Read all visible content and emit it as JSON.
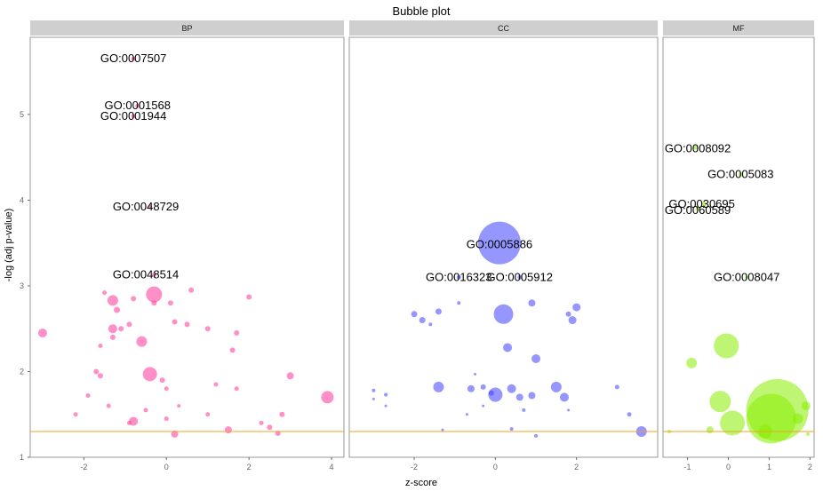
{
  "chart_data": {
    "type": "scatter",
    "title": "Bubble plot",
    "xlabel": "z-score",
    "ylabel": "-log (adj p-value)",
    "ylim": [
      1,
      5.9
    ],
    "y_ticks": [
      1,
      2,
      3,
      4,
      5
    ],
    "threshold_y": 1.3,
    "grid": false,
    "legend": "none",
    "colors": {
      "BP": "#ff3399",
      "CC": "#4040ff",
      "MF": "#88ee00",
      "threshold": "#f0a020"
    },
    "panels": [
      {
        "name": "BP",
        "xlim": [
          -3.3,
          4.3
        ],
        "x_ticks": [
          -2,
          0,
          2,
          4
        ],
        "labels": [
          {
            "text": "GO:0007507",
            "x": -0.8,
            "y": 5.65
          },
          {
            "text": "GO:0001568",
            "x": -0.7,
            "y": 5.1
          },
          {
            "text": "GO:0001944",
            "x": -0.8,
            "y": 4.98
          },
          {
            "text": "GO:0048729",
            "x": -0.5,
            "y": 3.92
          },
          {
            "text": "GO:0048514",
            "x": -0.5,
            "y": 3.13
          }
        ],
        "points": [
          {
            "x": -0.8,
            "y": 5.65,
            "r": 2.5
          },
          {
            "x": -0.7,
            "y": 5.1,
            "r": 2.5
          },
          {
            "x": -0.8,
            "y": 4.98,
            "r": 2.5
          },
          {
            "x": -0.4,
            "y": 3.92,
            "r": 2.5
          },
          {
            "x": -0.3,
            "y": 3.13,
            "r": 2.5
          },
          {
            "x": -3.0,
            "y": 2.45,
            "r": 5
          },
          {
            "x": -0.3,
            "y": 2.9,
            "r": 9
          },
          {
            "x": -1.3,
            "y": 2.83,
            "r": 6
          },
          {
            "x": -1.2,
            "y": 2.72,
            "r": 3.5
          },
          {
            "x": -0.8,
            "y": 2.85,
            "r": 3
          },
          {
            "x": -1.5,
            "y": 2.92,
            "r": 2.5
          },
          {
            "x": -0.9,
            "y": 2.55,
            "r": 3
          },
          {
            "x": -1.3,
            "y": 2.5,
            "r": 5
          },
          {
            "x": -0.6,
            "y": 2.35,
            "r": 6
          },
          {
            "x": -1.1,
            "y": 2.5,
            "r": 3
          },
          {
            "x": -0.4,
            "y": 1.97,
            "r": 8
          },
          {
            "x": -0.8,
            "y": 1.42,
            "r": 5
          },
          {
            "x": -1.6,
            "y": 2.3,
            "r": 2.5
          },
          {
            "x": 0.1,
            "y": 2.8,
            "r": 3
          },
          {
            "x": 0.6,
            "y": 2.95,
            "r": 3
          },
          {
            "x": 0.5,
            "y": 2.55,
            "r": 3
          },
          {
            "x": 0.2,
            "y": 2.58,
            "r": 3
          },
          {
            "x": 0.0,
            "y": 1.8,
            "r": 2.5
          },
          {
            "x": 0.3,
            "y": 1.6,
            "r": 2
          },
          {
            "x": 1.0,
            "y": 2.5,
            "r": 3
          },
          {
            "x": 1.7,
            "y": 2.45,
            "r": 3
          },
          {
            "x": 1.6,
            "y": 2.25,
            "r": 3
          },
          {
            "x": 2.0,
            "y": 2.87,
            "r": 3
          },
          {
            "x": 3.0,
            "y": 1.95,
            "r": 4
          },
          {
            "x": 3.9,
            "y": 1.7,
            "r": 7
          },
          {
            "x": 2.8,
            "y": 1.5,
            "r": 3
          },
          {
            "x": 2.5,
            "y": 1.35,
            "r": 3
          },
          {
            "x": 0.2,
            "y": 1.27,
            "r": 4
          },
          {
            "x": 1.5,
            "y": 1.32,
            "r": 4
          },
          {
            "x": 2.7,
            "y": 1.28,
            "r": 3
          },
          {
            "x": -1.9,
            "y": 1.72,
            "r": 2.5
          },
          {
            "x": -2.2,
            "y": 1.5,
            "r": 2.5
          },
          {
            "x": -1.4,
            "y": 1.6,
            "r": 2.5
          },
          {
            "x": -0.5,
            "y": 1.55,
            "r": 2.5
          },
          {
            "x": -0.9,
            "y": 1.4,
            "r": 2.5
          },
          {
            "x": 1.2,
            "y": 1.85,
            "r": 2.5
          },
          {
            "x": 1.7,
            "y": 1.8,
            "r": 2.5
          },
          {
            "x": 2.3,
            "y": 1.4,
            "r": 2.5
          },
          {
            "x": 1.0,
            "y": 1.5,
            "r": 2.5
          },
          {
            "x": -1.6,
            "y": 1.95,
            "r": 3
          },
          {
            "x": -1.7,
            "y": 2.0,
            "r": 3
          },
          {
            "x": -1.3,
            "y": 2.4,
            "r": 3
          },
          {
            "x": -0.3,
            "y": 2.8,
            "r": 3
          },
          {
            "x": 0.0,
            "y": 1.45,
            "r": 2.5
          },
          {
            "x": -0.1,
            "y": 1.9,
            "r": 3
          }
        ]
      },
      {
        "name": "CC",
        "xlim": [
          -3.6,
          4.0
        ],
        "x_ticks": [
          -2,
          0,
          2
        ],
        "labels": [
          {
            "text": "GO:0005886",
            "x": 0.1,
            "y": 3.48
          },
          {
            "text": "GO:0016323",
            "x": -0.9,
            "y": 3.1
          },
          {
            "text": "GO:0005912",
            "x": 0.6,
            "y": 3.1
          }
        ],
        "points": [
          {
            "x": 0.1,
            "y": 3.5,
            "r": 24
          },
          {
            "x": -0.9,
            "y": 3.1,
            "r": 2.5
          },
          {
            "x": 0.6,
            "y": 3.1,
            "r": 2.5
          },
          {
            "x": 0.2,
            "y": 2.67,
            "r": 11
          },
          {
            "x": -2.0,
            "y": 2.67,
            "r": 3.5
          },
          {
            "x": -1.8,
            "y": 2.6,
            "r": 3.5
          },
          {
            "x": -1.4,
            "y": 2.7,
            "r": 3.5
          },
          {
            "x": -1.6,
            "y": 2.55,
            "r": 2
          },
          {
            "x": 0.9,
            "y": 2.8,
            "r": 4
          },
          {
            "x": 1.9,
            "y": 2.6,
            "r": 4.5
          },
          {
            "x": 2.0,
            "y": 2.75,
            "r": 4.5
          },
          {
            "x": 1.8,
            "y": 2.67,
            "r": 3
          },
          {
            "x": -0.9,
            "y": 2.8,
            "r": 2
          },
          {
            "x": 0.3,
            "y": 2.28,
            "r": 5
          },
          {
            "x": 1.0,
            "y": 2.15,
            "r": 5
          },
          {
            "x": -1.4,
            "y": 1.82,
            "r": 6
          },
          {
            "x": 0.0,
            "y": 1.73,
            "r": 8
          },
          {
            "x": 0.4,
            "y": 1.8,
            "r": 5
          },
          {
            "x": 0.6,
            "y": 1.7,
            "r": 4
          },
          {
            "x": 0.9,
            "y": 1.72,
            "r": 4
          },
          {
            "x": 1.5,
            "y": 1.82,
            "r": 6
          },
          {
            "x": 1.7,
            "y": 1.7,
            "r": 5
          },
          {
            "x": -0.6,
            "y": 1.8,
            "r": 4
          },
          {
            "x": -0.3,
            "y": 1.82,
            "r": 3
          },
          {
            "x": -0.1,
            "y": 1.75,
            "r": 3
          },
          {
            "x": 3.6,
            "y": 1.3,
            "r": 6
          },
          {
            "x": 3.0,
            "y": 1.82,
            "r": 2.5
          },
          {
            "x": 3.3,
            "y": 1.5,
            "r": 2.5
          },
          {
            "x": 1.0,
            "y": 1.25,
            "r": 2
          },
          {
            "x": 0.4,
            "y": 1.33,
            "r": 2
          },
          {
            "x": 0.7,
            "y": 1.55,
            "r": 2
          },
          {
            "x": -3.0,
            "y": 1.78,
            "r": 2
          },
          {
            "x": -2.7,
            "y": 1.73,
            "r": 2
          },
          {
            "x": -3.0,
            "y": 1.68,
            "r": 1.5
          },
          {
            "x": -2.7,
            "y": 1.6,
            "r": 1.5
          },
          {
            "x": -1.3,
            "y": 1.32,
            "r": 1.5
          },
          {
            "x": -0.5,
            "y": 1.97,
            "r": 1.5
          },
          {
            "x": -0.7,
            "y": 1.5,
            "r": 1.5
          },
          {
            "x": -0.3,
            "y": 1.6,
            "r": 1.5
          },
          {
            "x": 1.8,
            "y": 1.55,
            "r": 1.5
          }
        ]
      },
      {
        "name": "MF",
        "xlim": [
          -1.6,
          2.1
        ],
        "x_ticks": [
          -1,
          0,
          1,
          2
        ],
        "labels": [
          {
            "text": "GO:0008092",
            "x": -0.75,
            "y": 4.6
          },
          {
            "text": "GO:0005083",
            "x": 0.3,
            "y": 4.3
          },
          {
            "text": "GO:0030695",
            "x": -0.65,
            "y": 3.95
          },
          {
            "text": "GO:0060589",
            "x": -0.75,
            "y": 3.88
          },
          {
            "text": "GO:0008047",
            "x": 0.45,
            "y": 3.1
          }
        ],
        "points": [
          {
            "x": -0.8,
            "y": 4.62,
            "r": 3
          },
          {
            "x": 0.3,
            "y": 4.3,
            "r": 2.5
          },
          {
            "x": -0.6,
            "y": 3.95,
            "r": 3
          },
          {
            "x": -0.75,
            "y": 3.9,
            "r": 2.5
          },
          {
            "x": 0.45,
            "y": 3.1,
            "r": 2
          },
          {
            "x": -0.05,
            "y": 2.3,
            "r": 14
          },
          {
            "x": -0.9,
            "y": 2.1,
            "r": 6
          },
          {
            "x": -0.2,
            "y": 1.65,
            "r": 12
          },
          {
            "x": 0.1,
            "y": 1.4,
            "r": 14
          },
          {
            "x": 1.2,
            "y": 1.55,
            "r": 35
          },
          {
            "x": 1.05,
            "y": 1.45,
            "r": 28
          },
          {
            "x": 1.7,
            "y": 1.45,
            "r": 6
          },
          {
            "x": 1.9,
            "y": 1.6,
            "r": 5
          },
          {
            "x": 0.9,
            "y": 1.3,
            "r": 8
          },
          {
            "x": -0.45,
            "y": 1.32,
            "r": 4
          },
          {
            "x": -1.45,
            "y": 1.3,
            "r": 2
          },
          {
            "x": 1.95,
            "y": 1.27,
            "r": 2
          }
        ]
      }
    ]
  }
}
